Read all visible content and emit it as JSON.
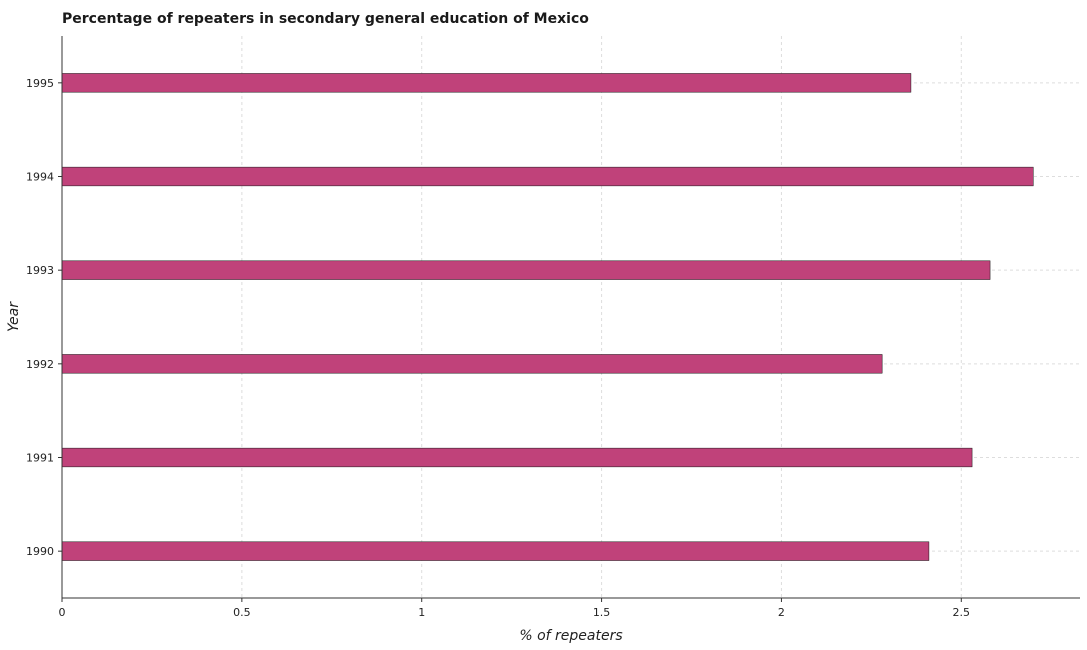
{
  "chart_data": {
    "type": "bar",
    "orientation": "horizontal",
    "title": "Percentage of repeaters in secondary general education of Mexico",
    "xlabel": "% of repeaters",
    "ylabel": "Year",
    "categories": [
      "1990",
      "1991",
      "1992",
      "1993",
      "1994",
      "1995"
    ],
    "values": [
      2.41,
      2.53,
      2.28,
      2.58,
      2.7,
      2.36
    ],
    "xlim": [
      0,
      2.83
    ],
    "xticks": [
      0,
      0.5,
      1,
      1.5,
      2,
      2.5
    ],
    "xtick_labels": [
      "0",
      "0.5",
      "1",
      "1.5",
      "2",
      "2.5"
    ],
    "bar_color": "#c0427a",
    "grid": true
  }
}
